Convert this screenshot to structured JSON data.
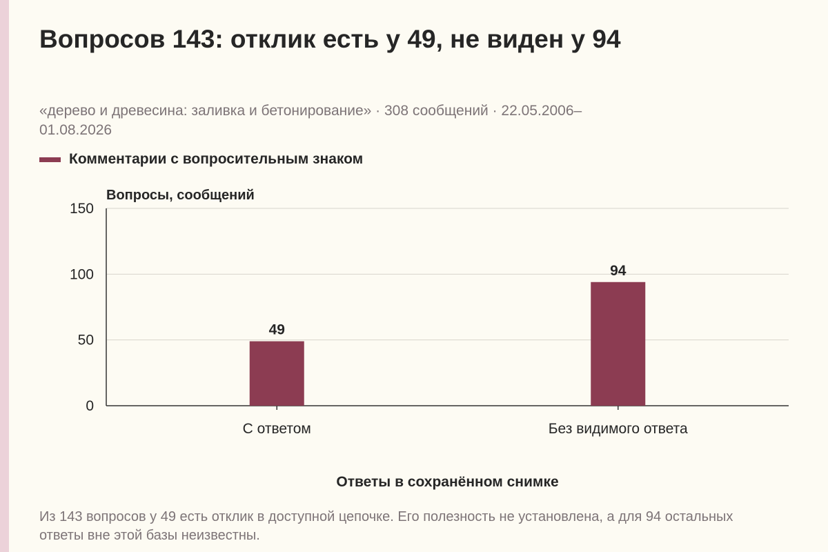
{
  "colors": {
    "bar": "#8c3c52",
    "background": "#fdfbf3",
    "grid": "#d8d6cc",
    "axis": "#333333",
    "side_strip": "#ecd2d9"
  },
  "header": {
    "title": "Вопросов 143: отклик есть у 49, не виден у 94",
    "subtitle": "«дерево и древесина: заливка и бетонирование» · 308 сообщений · 22.05.2006–01.08.2026"
  },
  "footer": {
    "note": "Из 143 вопросов у 49 есть отклик в доступной цепочке. Его полезность не установлена, а для 94 остальных ответы вне этой базы неизвестны."
  },
  "chart_data": {
    "type": "bar",
    "categories": [
      "С ответом",
      "Без видимого ответа"
    ],
    "series": [
      {
        "name": "Комментарии с вопросительным знаком",
        "values": [
          49,
          94
        ]
      }
    ],
    "data_labels": [
      "49",
      "94"
    ],
    "ylabel": "Вопросы, сообщений",
    "xlabel": "Ответы в сохранённом снимке",
    "ylim": [
      0,
      150
    ],
    "yticks": [
      0,
      50,
      100,
      150
    ],
    "grid": true,
    "legend_position": "top-left"
  }
}
